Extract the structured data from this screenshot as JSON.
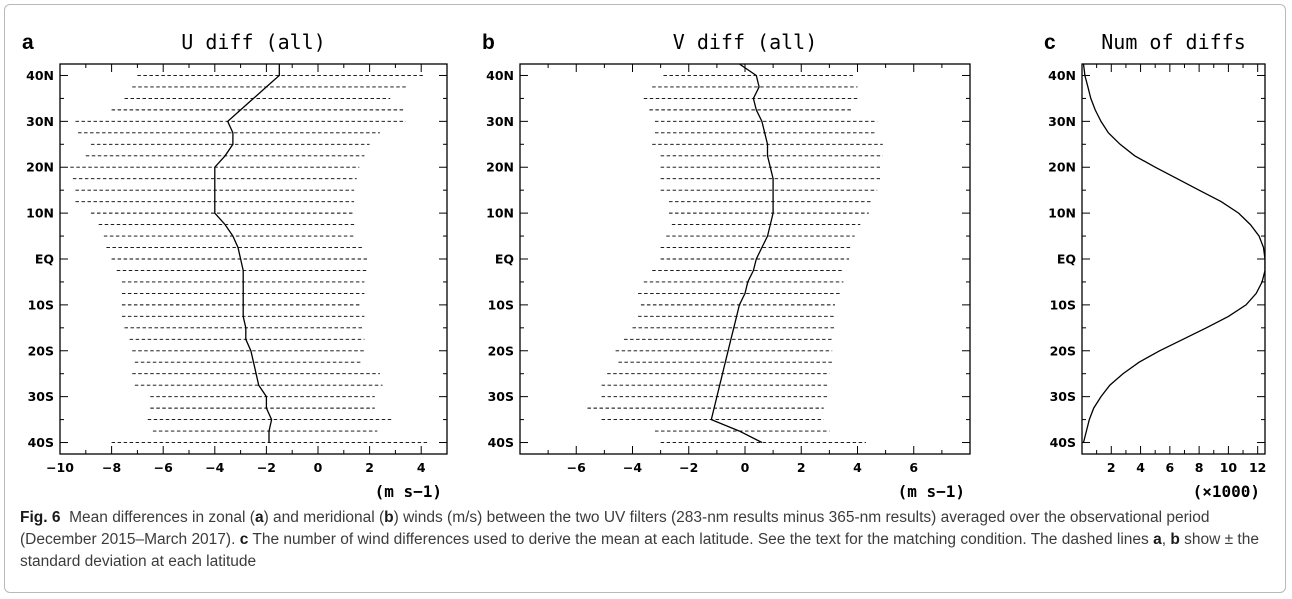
{
  "chart_data": [
    {
      "type": "line",
      "panel_letter": "a",
      "title": "U diff (all)",
      "unit_label": "(m s−1)",
      "xlim": [
        -10,
        5
      ],
      "ylim": [
        -42.5,
        42.5
      ],
      "xticks": [
        -10,
        -8,
        -6,
        -4,
        -2,
        0,
        2,
        4
      ],
      "xtick_labels": [
        "−10",
        "−8",
        "−6",
        "−4",
        "−2",
        "0",
        "2",
        "4"
      ],
      "yticks": [
        40,
        30,
        20,
        10,
        0,
        -10,
        -20,
        -30,
        -40
      ],
      "ytick_labels": [
        "40N",
        "30N",
        "20N",
        "10N",
        "EQ",
        "10S",
        "20S",
        "30S",
        "40S"
      ],
      "lat": [
        42.5,
        40,
        37.5,
        35,
        32.5,
        30,
        27.5,
        25,
        22.5,
        20,
        17.5,
        15,
        12.5,
        10,
        7.5,
        5,
        2.5,
        0,
        -2.5,
        -5,
        -7.5,
        -10,
        -12.5,
        -15,
        -17.5,
        -20,
        -22.5,
        -25,
        -27.5,
        -30,
        -32.5,
        -35,
        -37.5,
        -40
      ],
      "mean": [
        -1.5,
        -1.5,
        -2.0,
        -2.5,
        -3.0,
        -3.5,
        -3.3,
        -3.3,
        -3.6,
        -4.0,
        -4.0,
        -4.0,
        -4.0,
        -4.0,
        -3.6,
        -3.3,
        -3.1,
        -3.0,
        -2.9,
        -2.9,
        -2.9,
        -2.9,
        -2.9,
        -2.8,
        -2.8,
        -2.6,
        -2.5,
        -2.4,
        -2.3,
        -2.0,
        -2.0,
        -1.8,
        -1.9,
        -1.9
      ],
      "lower": [
        -9.0,
        -7.0,
        -7.2,
        -7.5,
        -8.0,
        -9.4,
        -9.3,
        -8.8,
        -9.0,
        -9.6,
        -9.5,
        -9.4,
        -9.4,
        -8.8,
        -8.5,
        -8.3,
        -8.2,
        -8.0,
        -7.8,
        -7.6,
        -7.6,
        -7.6,
        -7.6,
        -7.5,
        -7.3,
        -7.2,
        -7.1,
        -7.2,
        -7.1,
        -6.5,
        -6.5,
        -6.6,
        -6.4,
        -8.0
      ],
      "upper": [
        4.3,
        4.1,
        3.4,
        2.8,
        3.3,
        3.4,
        2.4,
        2.0,
        1.8,
        1.6,
        1.5,
        1.4,
        1.4,
        1.4,
        1.4,
        1.4,
        1.7,
        1.9,
        1.9,
        1.8,
        1.8,
        1.7,
        1.8,
        1.8,
        1.8,
        1.8,
        1.7,
        2.4,
        2.5,
        2.2,
        2.2,
        2.9,
        2.3,
        4.3
      ]
    },
    {
      "type": "line",
      "panel_letter": "b",
      "title": "V diff (all)",
      "unit_label": "(m s−1)",
      "xlim": [
        -8,
        8
      ],
      "ylim": [
        -42.5,
        42.5
      ],
      "xticks": [
        -6,
        -4,
        -2,
        0,
        2,
        4,
        6
      ],
      "xtick_labels": [
        "−6",
        "−4",
        "−2",
        "0",
        "2",
        "4",
        "6"
      ],
      "yticks": [
        40,
        30,
        20,
        10,
        0,
        -10,
        -20,
        -30,
        -40
      ],
      "ytick_labels": [
        "40N",
        "30N",
        "20N",
        "10N",
        "EQ",
        "10S",
        "20S",
        "30S",
        "40S"
      ],
      "lat": [
        42.5,
        40,
        37.5,
        35,
        32.5,
        30,
        27.5,
        25,
        22.5,
        20,
        17.5,
        15,
        12.5,
        10,
        7.5,
        5,
        2.5,
        0,
        -2.5,
        -5,
        -7.5,
        -10,
        -12.5,
        -15,
        -17.5,
        -20,
        -22.5,
        -25,
        -27.5,
        -30,
        -32.5,
        -35,
        -37.5,
        -40
      ],
      "mean": [
        -0.2,
        0.4,
        0.5,
        0.3,
        0.4,
        0.6,
        0.7,
        0.8,
        0.8,
        0.9,
        1.0,
        1.0,
        1.0,
        1.0,
        0.9,
        0.8,
        0.6,
        0.4,
        0.3,
        0.1,
        0.0,
        -0.2,
        -0.3,
        -0.4,
        -0.5,
        -0.6,
        -0.7,
        -0.8,
        -0.9,
        -1.0,
        -1.1,
        -1.2,
        -0.2,
        0.6
      ],
      "lower": [
        -3.3,
        -2.9,
        -3.3,
        -3.6,
        -3.4,
        -3.2,
        -3.2,
        -3.3,
        -3.0,
        -3.0,
        -3.0,
        -3.0,
        -2.7,
        -2.7,
        -2.6,
        -2.8,
        -3.0,
        -3.0,
        -3.3,
        -3.6,
        -3.8,
        -3.7,
        -3.8,
        -4.0,
        -4.3,
        -4.6,
        -4.5,
        -4.9,
        -5.1,
        -5.1,
        -5.6,
        -5.1,
        -3.2,
        -3.0
      ],
      "upper": [
        3.8,
        3.9,
        4.0,
        4.0,
        3.8,
        4.7,
        4.6,
        4.9,
        4.9,
        4.8,
        4.8,
        4.7,
        4.5,
        4.4,
        4.1,
        3.9,
        3.8,
        3.7,
        3.5,
        3.5,
        3.4,
        3.2,
        3.2,
        3.2,
        3.1,
        3.1,
        3.1,
        3.0,
        3.0,
        3.0,
        2.8,
        2.8,
        3.0,
        4.3
      ]
    },
    {
      "type": "line",
      "panel_letter": "c",
      "title": "Num of diffs",
      "unit_label": "(×1000)",
      "xlim": [
        0,
        12.5
      ],
      "ylim": [
        -42.5,
        42.5
      ],
      "xticks": [
        2,
        4,
        6,
        8,
        10,
        12
      ],
      "xtick_labels": [
        "2",
        "4",
        "6",
        "8",
        "10",
        "12"
      ],
      "yticks": [
        40,
        30,
        20,
        10,
        0,
        -10,
        -20,
        -30,
        -40
      ],
      "ytick_labels": [
        "40N",
        "30N",
        "20N",
        "10N",
        "EQ",
        "10S",
        "20S",
        "30S",
        "40S"
      ],
      "lat": [
        42.5,
        40,
        37.5,
        35,
        32.5,
        30,
        27.5,
        25,
        22.5,
        20,
        17.5,
        15,
        12.5,
        10,
        7.5,
        5,
        2.5,
        0,
        -2.5,
        -5,
        -7.5,
        -10,
        -12.5,
        -15,
        -17.5,
        -20,
        -22.5,
        -25,
        -27.5,
        -30,
        -32.5,
        -35,
        -37.5,
        -40
      ],
      "values": [
        0.1,
        0.2,
        0.4,
        0.6,
        0.9,
        1.3,
        1.8,
        2.6,
        3.6,
        5.0,
        6.5,
        8.0,
        9.5,
        10.7,
        11.5,
        12.1,
        12.4,
        12.5,
        12.5,
        12.3,
        11.9,
        11.2,
        10.0,
        8.5,
        6.9,
        5.3,
        3.9,
        2.8,
        1.9,
        1.3,
        0.8,
        0.5,
        0.3,
        0.1
      ]
    }
  ],
  "caption": {
    "fig_label": "Fig. 6",
    "seg1": "Mean differences in zonal (",
    "a": "a",
    "seg2": ") and meridional (",
    "b": "b",
    "seg3": ") winds (m/s) between the two UV filters (283-nm results minus 365-nm results) averaged over the observational period (December 2015–March 2017). ",
    "c": "c",
    "seg4": " The number of wind differences used to derive the mean at each latitude. See the text for the matching condition. The dashed lines ",
    "a2": "a",
    "seg5": ", ",
    "b2": "b",
    "seg6": " show ± the standard deviation at each latitude"
  }
}
